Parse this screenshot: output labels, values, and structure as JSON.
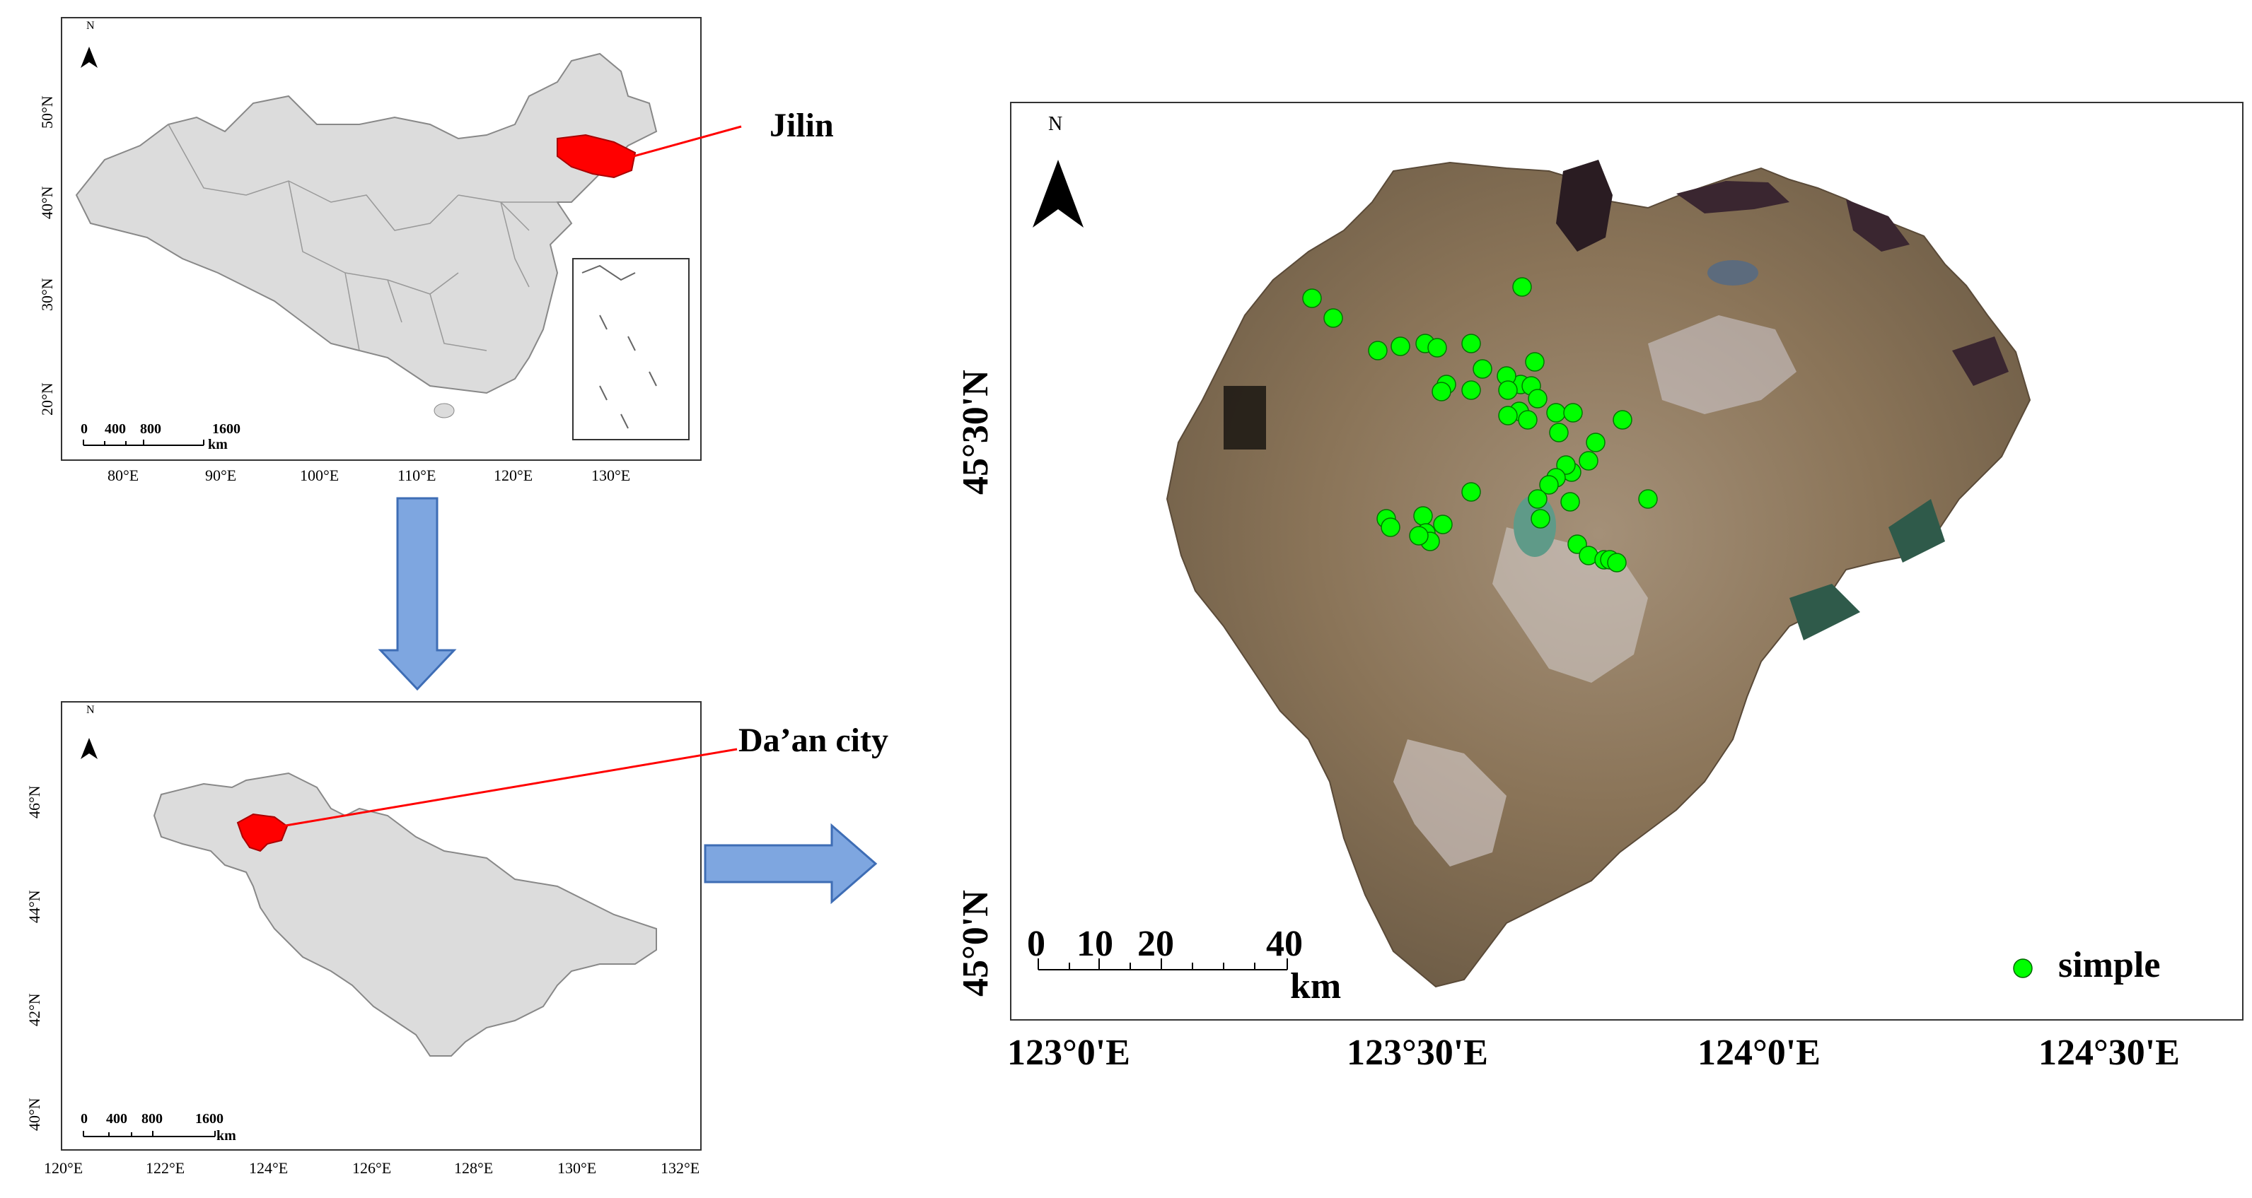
{
  "panel_china": {
    "north_label": "N",
    "lat_labels": [
      "50°N",
      "40°N",
      "30°N",
      "20°N"
    ],
    "lon_labels": [
      "80°E",
      "90°E",
      "100°E",
      "110°E",
      "120°E",
      "130°E"
    ],
    "scale_numbers": [
      "0",
      "400",
      "800",
      "1600"
    ],
    "scale_unit": "km",
    "callout": "Jilin"
  },
  "panel_jilin": {
    "north_label": "N",
    "lat_labels": [
      "46°N",
      "44°N",
      "42°N",
      "40°N"
    ],
    "lon_labels": [
      "120°E",
      "122°E",
      "124°E",
      "126°E",
      "128°E",
      "130°E",
      "132°E"
    ],
    "scale_numbers": [
      "0",
      "400",
      "800",
      "1600"
    ],
    "scale_unit": "km",
    "callout": "Da’an city"
  },
  "panel_daan": {
    "north_label": "N",
    "lat_labels": [
      "45°30'N",
      "45°0'N"
    ],
    "lon_labels": [
      "123°0'E",
      "123°30'E",
      "124°0'E",
      "124°30'E"
    ],
    "scale_numbers": [
      "0",
      "10",
      "20",
      "40"
    ],
    "scale_unit": "km",
    "legend_label": "simple",
    "sample_color": "#00ff00",
    "sample_count": 48
  },
  "colors": {
    "region_fill": "#dcdcdc",
    "highlight": "#ff0000",
    "arrow_fill": "#7ea6e0",
    "arrow_stroke": "#3e6db5"
  }
}
